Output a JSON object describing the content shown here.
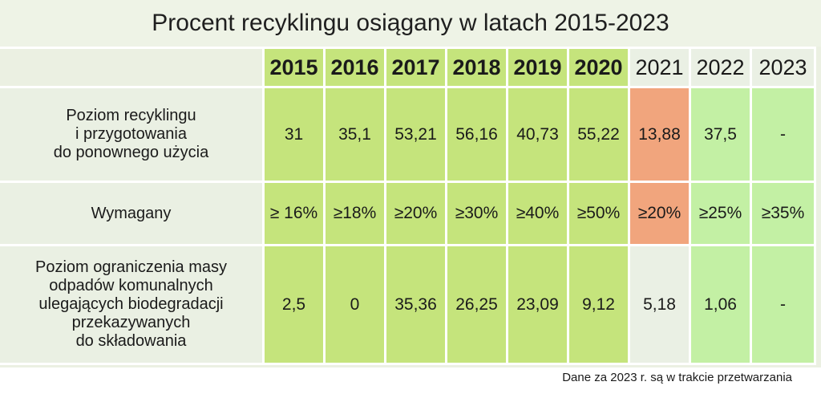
{
  "chart_data": {
    "type": "table",
    "title": "Procent recyklingu osiągany w latach 2015-2023",
    "columns": [
      "2015",
      "2016",
      "2017",
      "2018",
      "2019",
      "2020",
      "2021",
      "2022",
      "2023"
    ],
    "rows": [
      {
        "label_lines": [
          "Poziom recyklingu",
          "i przygotowania",
          "do ponownego użycia"
        ],
        "values": [
          "31",
          "35,1",
          "53,21",
          "56,16",
          "40,73",
          "55,22",
          "13,88",
          "37,5",
          "-"
        ]
      },
      {
        "label_lines": [
          "Wymagany"
        ],
        "values": [
          "≥ 16%",
          "≥18%",
          "≥20%",
          "≥30%",
          "≥40%",
          "≥50%",
          "≥20%",
          "≥25%",
          "≥35%"
        ]
      },
      {
        "label_lines": [
          "Poziom ograniczenia masy",
          "odpadów komunalnych",
          "ulegających biodegradacji",
          "przekazywanych",
          "do składowania"
        ],
        "values": [
          "2,5",
          "0",
          "35,36",
          "26,25",
          "23,09",
          "9,12",
          "5,18",
          "1,06",
          "-"
        ]
      }
    ],
    "footnote": "Dane za 2023 r. są w trakcie przetwarzania"
  },
  "colors": {
    "achieved": "#c5e47c",
    "current": "#c3f0a4",
    "missed": "#f1a57d",
    "neutral": "#eaf0e4"
  }
}
